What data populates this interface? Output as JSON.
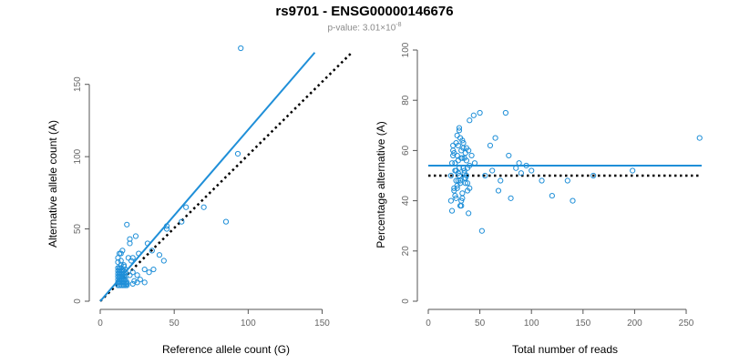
{
  "header": {
    "title": "rs9701 - ENSG00000146676",
    "subtitle_base": "p-value: 3.01×10",
    "subtitle_exp": "-8"
  },
  "colors": {
    "points": "#1f8fd8",
    "fit": "#1f8fd8",
    "reference": "#000000"
  },
  "chart_data": [
    {
      "type": "scatter",
      "xlabel": "Reference allele count (G)",
      "ylabel": "Alternative allele count (A)",
      "xlim": [
        0,
        170
      ],
      "ylim": [
        0,
        175
      ],
      "xticks": [
        0,
        50,
        100,
        150
      ],
      "yticks": [
        0,
        50,
        100,
        150
      ],
      "x": [
        12,
        13,
        14,
        15,
        16,
        17,
        18,
        12,
        13,
        14,
        15,
        16,
        17,
        18,
        12,
        13,
        14,
        15,
        16,
        17,
        12,
        13,
        14,
        15,
        16,
        17,
        12,
        13,
        14,
        15,
        16,
        12,
        13,
        14,
        15,
        16,
        12,
        13,
        14,
        12,
        13,
        14,
        15,
        16,
        17,
        18,
        19,
        20,
        20,
        21,
        22,
        24,
        26,
        30,
        32,
        35,
        40,
        43,
        45,
        45,
        55,
        58,
        70,
        85,
        93,
        95,
        14,
        16,
        22,
        25,
        27,
        30,
        33,
        36,
        18,
        22,
        25,
        12,
        14,
        17,
        20,
        23
      ],
      "y": [
        11,
        11,
        11,
        11,
        11,
        11,
        11,
        13,
        13,
        13,
        13,
        13,
        13,
        13,
        15,
        15,
        15,
        15,
        15,
        15,
        17,
        17,
        17,
        17,
        17,
        17,
        19,
        19,
        19,
        19,
        19,
        21,
        21,
        21,
        21,
        21,
        23,
        23,
        23,
        30,
        33,
        28,
        35,
        25,
        20,
        53,
        30,
        40,
        43,
        28,
        30,
        45,
        33,
        22,
        40,
        35,
        32,
        28,
        50,
        52,
        55,
        65,
        65,
        55,
        102,
        175,
        25,
        24,
        20,
        18,
        15,
        13,
        20,
        22,
        12,
        12,
        13,
        27,
        33,
        22,
        18,
        14
      ],
      "fit_line": [
        [
          0,
          0
        ],
        [
          145,
          172
        ]
      ],
      "reference_line": [
        [
          0,
          0
        ],
        [
          170,
          172
        ]
      ]
    },
    {
      "type": "scatter",
      "xlabel": "Total number of reads",
      "ylabel": "Percentage alternative (A)",
      "xlim": [
        0,
        265
      ],
      "ylim": [
        0,
        100
      ],
      "xticks": [
        0,
        50,
        100,
        150,
        200,
        250
      ],
      "yticks": [
        0,
        20,
        40,
        60,
        80,
        100
      ],
      "x": [
        22,
        23,
        24,
        25,
        26,
        27,
        28,
        29,
        30,
        31,
        32,
        33,
        34,
        35,
        36,
        37,
        38,
        39,
        40,
        22,
        24,
        26,
        28,
        30,
        32,
        34,
        36,
        38,
        40,
        23,
        25,
        27,
        29,
        31,
        33,
        35,
        37,
        39,
        24,
        26,
        28,
        30,
        32,
        34,
        36,
        38,
        25,
        27,
        29,
        31,
        33,
        35,
        37,
        27,
        29,
        31,
        33,
        35,
        28,
        30,
        32,
        40,
        42,
        44,
        45,
        50,
        52,
        55,
        60,
        62,
        65,
        68,
        70,
        75,
        78,
        80,
        85,
        88,
        90,
        95,
        100,
        110,
        120,
        135,
        140,
        160,
        198,
        263
      ],
      "y": [
        50,
        55,
        60,
        45,
        52,
        48,
        58,
        62,
        53,
        47,
        57,
        43,
        63,
        51,
        49,
        56,
        44,
        60,
        54,
        40,
        58,
        42,
        66,
        50,
        38,
        61,
        47,
        53,
        45,
        36,
        59,
        52,
        48,
        65,
        41,
        57,
        50,
        35,
        62,
        55,
        46,
        68,
        40,
        53,
        59,
        47,
        44,
        63,
        51,
        38,
        57,
        49,
        61,
        41,
        56,
        48,
        64,
        52,
        45,
        69,
        60,
        72,
        58,
        74,
        55,
        75,
        28,
        50,
        62,
        52,
        65,
        44,
        48,
        75,
        58,
        41,
        53,
        55,
        51,
        54,
        52,
        48,
        42,
        48,
        40,
        50,
        52,
        65
      ],
      "fit_line": [
        [
          0,
          54
        ],
        [
          265,
          54
        ]
      ],
      "reference_line": [
        [
          0,
          50
        ],
        [
          265,
          50
        ]
      ]
    }
  ]
}
